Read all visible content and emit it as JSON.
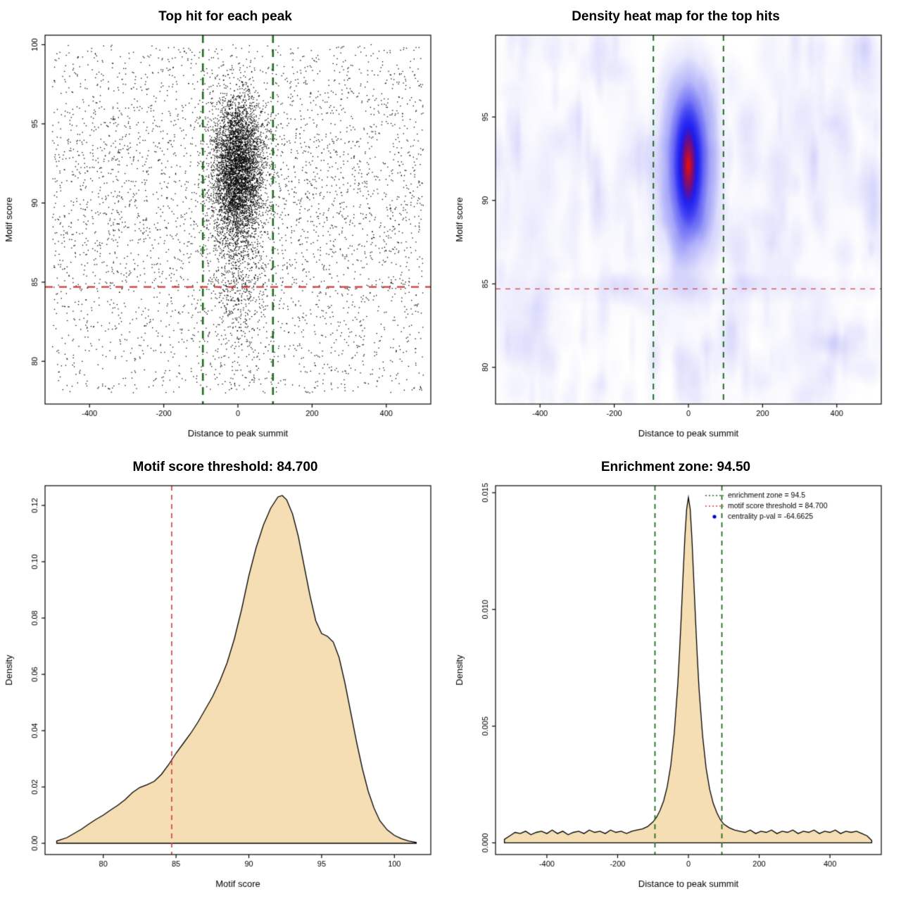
{
  "page": {
    "background": "#ffffff"
  },
  "chart_data": [
    {
      "type": "scatter",
      "title": "Top hit for each peak",
      "xlabel": "Distance to peak summit",
      "ylabel": "Motif score",
      "xlim": [
        -520,
        520
      ],
      "ylim": [
        77.3,
        100.6
      ],
      "xticks": [
        -400,
        -200,
        0,
        200,
        400
      ],
      "xtick_labels": [
        "-400",
        "-200",
        "0",
        "200",
        "400"
      ],
      "yticks": [
        80,
        85,
        90,
        95,
        100
      ],
      "ytick_labels": [
        "80",
        "85",
        "90",
        "95",
        "100"
      ],
      "point_color": "#000000",
      "generator": {
        "seed": 1234567,
        "y_min": 78,
        "y_max": 100,
        "cluster": {
          "n": 4600,
          "x_mean": 0,
          "x_sd": 34,
          "y_mean": 92.1,
          "y_sd": 2.3
        },
        "cluster_tail": {
          "n": 750,
          "x_sd": 38,
          "y_mean": 86,
          "y_sd": 3.2
        },
        "background": {
          "n": 3900,
          "x_min": -500,
          "x_max": 500,
          "uniform_frac": 0.62,
          "norm_mean": 90.5,
          "norm_sd": 5
        }
      },
      "hlines": [
        {
          "y": 84.7,
          "color": "#cf3a3a",
          "width": 2.4,
          "dash": [
            11,
            9
          ]
        }
      ],
      "vlines": [
        {
          "x": -94.5,
          "color": "#1e6b1e",
          "width": 2.6,
          "dash": [
            11,
            9
          ]
        },
        {
          "x": 94.5,
          "color": "#1e6b1e",
          "width": 2.6,
          "dash": [
            11,
            9
          ]
        }
      ],
      "summary": "Best motif hit per peak: dense cluster centred at distance 0 with motif score ~92; red dashed line = motif score threshold 84.7; green dashed lines = enrichment zone edges at ±94.5"
    },
    {
      "type": "heatmap",
      "title": "Density heat map for the top hits",
      "xlabel": "Distance to peak summit",
      "ylabel": "Motif score",
      "xlim": [
        -520,
        520
      ],
      "ylim": [
        77.8,
        99.9
      ],
      "xticks": [
        -400,
        -200,
        0,
        200,
        400
      ],
      "xtick_labels": [
        "-400",
        "-200",
        "0",
        "200",
        "400"
      ],
      "yticks": [
        80,
        85,
        90,
        95
      ],
      "ytick_labels": [
        "80",
        "85",
        "90",
        "95"
      ],
      "density_peak": {
        "x": 0,
        "y": 92.2
      },
      "colors": {
        "low": "#ffffff",
        "mid": "#0000ee",
        "high": "#ee1100"
      },
      "noise": {
        "seed": 97531,
        "n": 300
      },
      "hlines": [
        {
          "y": 84.7,
          "color": "#e04a4a",
          "width": 1.4,
          "dash": [
            7,
            7
          ]
        }
      ],
      "vlines": [
        {
          "x": -94.5,
          "color": "#1e6b1e",
          "width": 2.0,
          "dash": [
            8,
            7
          ]
        },
        {
          "x": 94.5,
          "color": "#1e6b1e",
          "width": 2.0,
          "dash": [
            8,
            7
          ]
        }
      ],
      "summary": "2D kernel density of top hits: hottest (red) region at distance 0, motif score ~92, surrounded by blue density; faint blue noise elsewhere"
    },
    {
      "type": "area",
      "title": "Motif score threshold: 84.700",
      "xlabel": "Motif score",
      "ylabel": "Density",
      "xlim": [
        76,
        102.5
      ],
      "ylim": [
        -0.004,
        0.127
      ],
      "xticks": [
        80,
        85,
        90,
        95,
        100
      ],
      "xtick_labels": [
        "80",
        "85",
        "90",
        "95",
        "100"
      ],
      "yticks": [
        0,
        0.02,
        0.04,
        0.06,
        0.08,
        0.1,
        0.12
      ],
      "ytick_labels": [
        "0.00",
        "0.02",
        "0.04",
        "0.06",
        "0.08",
        "0.10",
        "0.12"
      ],
      "fill": "#f5deb3",
      "stroke": "#000000",
      "points": [
        [
          76.8,
          0.0008
        ],
        [
          77.5,
          0.002
        ],
        [
          78,
          0.0035
        ],
        [
          78.5,
          0.005
        ],
        [
          79,
          0.0068
        ],
        [
          79.5,
          0.0085
        ],
        [
          80,
          0.01
        ],
        [
          80.5,
          0.0118
        ],
        [
          81,
          0.0135
        ],
        [
          81.5,
          0.0155
        ],
        [
          82,
          0.018
        ],
        [
          82.5,
          0.0198
        ],
        [
          83,
          0.0208
        ],
        [
          83.5,
          0.022
        ],
        [
          84,
          0.0245
        ],
        [
          84.5,
          0.028
        ],
        [
          85,
          0.032
        ],
        [
          85.5,
          0.0355
        ],
        [
          86,
          0.039
        ],
        [
          86.5,
          0.043
        ],
        [
          87,
          0.0475
        ],
        [
          87.5,
          0.052
        ],
        [
          88,
          0.0575
        ],
        [
          88.5,
          0.064
        ],
        [
          89,
          0.0725
        ],
        [
          89.5,
          0.083
        ],
        [
          90,
          0.095
        ],
        [
          90.5,
          0.105
        ],
        [
          91,
          0.113
        ],
        [
          91.5,
          0.119
        ],
        [
          92,
          0.123
        ],
        [
          92.3,
          0.1235
        ],
        [
          92.6,
          0.122
        ],
        [
          93,
          0.117
        ],
        [
          93.4,
          0.109
        ],
        [
          93.8,
          0.0985
        ],
        [
          94.2,
          0.088
        ],
        [
          94.6,
          0.079
        ],
        [
          95,
          0.0745
        ],
        [
          95.4,
          0.0735
        ],
        [
          95.8,
          0.0715
        ],
        [
          96.2,
          0.066
        ],
        [
          96.6,
          0.057
        ],
        [
          97,
          0.0465
        ],
        [
          97.4,
          0.036
        ],
        [
          97.8,
          0.0265
        ],
        [
          98.2,
          0.0185
        ],
        [
          98.6,
          0.0125
        ],
        [
          99,
          0.008
        ],
        [
          99.5,
          0.0048
        ],
        [
          100,
          0.0028
        ],
        [
          100.5,
          0.0016
        ],
        [
          101,
          0.0008
        ],
        [
          101.5,
          0.0003
        ]
      ],
      "vlines": [
        {
          "x": 84.7,
          "color": "#cf3a3a",
          "width": 1.6,
          "dash": [
            7,
            6
          ]
        }
      ],
      "summary": "Density of motif scores, peak density 0.123 at score ~92 with shoulder near 94.5-95.5; red dashed line marks threshold 84.700"
    },
    {
      "type": "area",
      "title": "Enrichment zone: 94.50",
      "xlabel": "Distance to peak summit",
      "ylabel": "Density",
      "xlim": [
        -545,
        545
      ],
      "ylim": [
        -0.0005,
        0.0153
      ],
      "xticks": [
        -400,
        -200,
        0,
        200,
        400
      ],
      "xtick_labels": [
        "-400",
        "-200",
        "0",
        "200",
        "400"
      ],
      "yticks": [
        0,
        0.005,
        0.01,
        0.015
      ],
      "ytick_labels": [
        "0.000",
        "0.005",
        "0.010",
        "0.015"
      ],
      "fill": "#f5deb3",
      "stroke": "#000000",
      "points": [
        [
          -520,
          0.00015
        ],
        [
          -505,
          0.0003
        ],
        [
          -490,
          0.00045
        ],
        [
          -475,
          0.0004
        ],
        [
          -460,
          0.0005
        ],
        [
          -445,
          0.00035
        ],
        [
          -430,
          0.00045
        ],
        [
          -415,
          0.0005
        ],
        [
          -400,
          0.0004
        ],
        [
          -385,
          0.00055
        ],
        [
          -370,
          0.0004
        ],
        [
          -355,
          0.0005
        ],
        [
          -340,
          0.00035
        ],
        [
          -325,
          0.00045
        ],
        [
          -310,
          0.0005
        ],
        [
          -295,
          0.0004
        ],
        [
          -280,
          0.00055
        ],
        [
          -265,
          0.00045
        ],
        [
          -250,
          0.0005
        ],
        [
          -235,
          0.0004
        ],
        [
          -220,
          0.00055
        ],
        [
          -205,
          0.00045
        ],
        [
          -190,
          0.0005
        ],
        [
          -175,
          0.0004
        ],
        [
          -160,
          0.0005
        ],
        [
          -145,
          0.00055
        ],
        [
          -130,
          0.0006
        ],
        [
          -115,
          0.0007
        ],
        [
          -100,
          0.0009
        ],
        [
          -90,
          0.0011
        ],
        [
          -80,
          0.0014
        ],
        [
          -70,
          0.0018
        ],
        [
          -60,
          0.0024
        ],
        [
          -50,
          0.0033
        ],
        [
          -40,
          0.0047
        ],
        [
          -30,
          0.0068
        ],
        [
          -25,
          0.0082
        ],
        [
          -20,
          0.0098
        ],
        [
          -15,
          0.0115
        ],
        [
          -10,
          0.0131
        ],
        [
          -5,
          0.0143
        ],
        [
          0,
          0.0148
        ],
        [
          5,
          0.0143
        ],
        [
          10,
          0.013
        ],
        [
          15,
          0.0113
        ],
        [
          20,
          0.0096
        ],
        [
          25,
          0.008
        ],
        [
          30,
          0.0066
        ],
        [
          40,
          0.0046
        ],
        [
          50,
          0.0032
        ],
        [
          60,
          0.0023
        ],
        [
          70,
          0.0017
        ],
        [
          80,
          0.0013
        ],
        [
          90,
          0.001
        ],
        [
          100,
          0.0008
        ],
        [
          115,
          0.00065
        ],
        [
          130,
          0.00055
        ],
        [
          145,
          0.0005
        ],
        [
          160,
          0.00045
        ],
        [
          175,
          0.00055
        ],
        [
          190,
          0.0004
        ],
        [
          205,
          0.0005
        ],
        [
          220,
          0.00045
        ],
        [
          235,
          0.00055
        ],
        [
          250,
          0.0004
        ],
        [
          265,
          0.0005
        ],
        [
          280,
          0.00045
        ],
        [
          295,
          0.00055
        ],
        [
          310,
          0.0004
        ],
        [
          325,
          0.0005
        ],
        [
          340,
          0.00045
        ],
        [
          355,
          0.00055
        ],
        [
          370,
          0.0004
        ],
        [
          385,
          0.0005
        ],
        [
          400,
          0.00045
        ],
        [
          415,
          0.00055
        ],
        [
          430,
          0.0004
        ],
        [
          445,
          0.0005
        ],
        [
          460,
          0.00045
        ],
        [
          475,
          0.0005
        ],
        [
          490,
          0.0004
        ],
        [
          505,
          0.0003
        ],
        [
          518,
          0.0001
        ]
      ],
      "vlines": [
        {
          "x": -94.5,
          "color": "#1e6b1e",
          "width": 1.8,
          "dash": [
            7,
            6
          ]
        },
        {
          "x": 94.5,
          "color": "#1e6b1e",
          "width": 1.8,
          "dash": [
            7,
            6
          ]
        }
      ],
      "legend": {
        "items": [
          {
            "type": "line",
            "color": "#1e6b1e",
            "dash": [
              2,
              3
            ],
            "label": "enrichment zone = 94.5"
          },
          {
            "type": "line",
            "color": "#cf3a3a",
            "dash": [
              2,
              3
            ],
            "label": "motif score threshold = 84.700"
          },
          {
            "type": "point",
            "color": "#0000cc",
            "label": "centrality p-val = -64.6625"
          }
        ]
      },
      "summary": "Density of distances to peak summit: sharp central peak at 0 reaching ~0.0148, flat noisy baseline ~0.0005 elsewhere; green dashed lines mark enrichment zone ±94.5"
    }
  ]
}
